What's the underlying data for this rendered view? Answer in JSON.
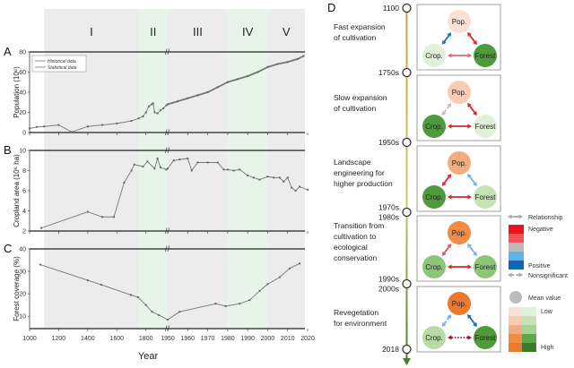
{
  "periods": [
    "I",
    "II",
    "III",
    "IV",
    "V"
  ],
  "period_bounds": [
    1100,
    1750,
    1950,
    1980,
    2000,
    2020
  ],
  "period_colors": [
    "#ececec",
    "#e8f4ea",
    "#ececec",
    "#e8f4ea",
    "#ececec"
  ],
  "xlabel": "Year",
  "x_ticks": [
    1000,
    1200,
    1400,
    1600,
    1800,
    1950,
    1960,
    1970,
    1980,
    1990,
    2000,
    2010,
    2020
  ],
  "x_break": 1950,
  "chart_data": [
    {
      "panel": "A",
      "type": "line",
      "ylabel": "Population (10⁶)",
      "ylim": [
        0,
        80
      ],
      "yticks": [
        0,
        20,
        40,
        60,
        80
      ],
      "legend": [
        "Historical data",
        "Statistical data"
      ],
      "legend_placement": "top-left",
      "series": [
        {
          "name": "Historical data",
          "x": [
            1000,
            1050,
            1100,
            1200,
            1290,
            1400,
            1500,
            1600,
            1700,
            1750,
            1780,
            1800,
            1820,
            1840,
            1850,
            1860,
            1880,
            1900,
            1920,
            1940,
            1950
          ],
          "y": [
            4,
            5.5,
            6,
            7.5,
            0.5,
            6,
            7.5,
            9,
            11.5,
            14,
            16,
            20,
            26,
            28,
            29,
            20,
            19,
            22,
            24,
            27,
            28
          ]
        },
        {
          "name": "Statistical data",
          "x": [
            1950,
            1955,
            1960,
            1965,
            1970,
            1975,
            1980,
            1985,
            1990,
            1995,
            2000,
            2005,
            2010,
            2015,
            2018
          ],
          "y": [
            28,
            31,
            34,
            37,
            40,
            45,
            50,
            53,
            56,
            60,
            65,
            68,
            70,
            73,
            76
          ]
        }
      ]
    },
    {
      "panel": "B",
      "type": "line",
      "ylabel": "Cropland area (10⁶ ha)",
      "ylim": [
        2,
        10
      ],
      "yticks": [
        2,
        4,
        6,
        8,
        10
      ],
      "series": [
        {
          "x": [
            1080,
            1400,
            1500,
            1580,
            1650,
            1700,
            1720,
            1780,
            1810,
            1860,
            1880,
            1900,
            1940,
            1950,
            1953,
            1956,
            1960,
            1962,
            1965,
            1970,
            1975,
            1978,
            1980,
            1983,
            1986,
            1990,
            1993,
            1996,
            2000,
            2003,
            2006,
            2008,
            2010,
            2012,
            2014,
            2016,
            2020
          ],
          "y": [
            2.3,
            3.9,
            3.4,
            3.4,
            6.8,
            8.0,
            8.6,
            8.4,
            8.9,
            8.2,
            9.2,
            8.3,
            8.1,
            8.2,
            9.0,
            9.1,
            9.2,
            8.0,
            8.8,
            8.8,
            8.8,
            8.1,
            8.1,
            8.0,
            8.1,
            7.5,
            7.3,
            7.1,
            7.4,
            7.3,
            7.3,
            6.9,
            7.3,
            6.3,
            6.0,
            6.4,
            6.1
          ]
        }
      ]
    },
    {
      "panel": "C",
      "type": "line",
      "ylabel": "Forest coverage (%)",
      "ylim": [
        4.5,
        40
      ],
      "yticks": [
        10,
        20,
        30,
        40
      ],
      "series": [
        {
          "x": [
            1074,
            1400,
            1494,
            1697,
            1746,
            1800,
            1842,
            1890,
            1950,
            1956,
            1974,
            1979,
            1986,
            1991,
            1996,
            2000,
            2006,
            2011,
            2016
          ],
          "y": [
            33,
            26,
            24,
            19.5,
            18.5,
            15,
            12,
            10.5,
            8.5,
            12,
            15.6,
            14.5,
            15.6,
            17.2,
            21.3,
            24.3,
            27.4,
            31.3,
            33.5
          ]
        }
      ]
    }
  ],
  "diagram": {
    "letter": "D",
    "timeline": [
      "1100",
      "1750s",
      "1950s",
      "1970s\n1980s",
      "1990s\n2000s",
      "2018"
    ],
    "node_labels": {
      "pop": "Pop.",
      "crop": "Crop.",
      "forest": "Forest"
    },
    "stages": [
      {
        "desc": [
          "Fast expansion",
          "of cultivation"
        ],
        "pop": "#fbe1d5",
        "crop": "#e1f0d9",
        "forest": "#4f9a3b",
        "links": {
          "pop_crop": [
            "#1a6fb5",
            "solid"
          ],
          "pop_forest": [
            "#d8242a",
            "solid"
          ],
          "crop_forest": [
            "#ea6a72",
            "solid"
          ]
        }
      },
      {
        "desc": [
          "Slow expansion",
          "of cultivation"
        ],
        "pop": "#f8cdb3",
        "crop": "#4f9a3b",
        "forest": "#e1f0d9",
        "links": {
          "pop_crop": [
            "#bbbbbb",
            "dashed"
          ],
          "pop_forest": [
            "#d8242a",
            "solid"
          ],
          "crop_forest": [
            "#d8242a",
            "solid"
          ]
        }
      },
      {
        "desc": [
          "Landscape",
          "engineering for",
          "higher production"
        ],
        "pop": "#f4ab80",
        "crop": "#4f9a3b",
        "forest": "#c6e3b6",
        "links": {
          "pop_crop": [
            "#d8242a",
            "solid"
          ],
          "pop_forest": [
            "#6cb4e4",
            "solid"
          ],
          "crop_forest": [
            "#d8242a",
            "solid"
          ]
        }
      },
      {
        "desc": [
          "Transition from",
          "cultivation to",
          "ecological",
          "conservation"
        ],
        "pop": "#ee8c48",
        "crop": "#8dc67b",
        "forest": "#8dc67b",
        "links": {
          "pop_crop": [
            "#e0525a",
            "solid"
          ],
          "pop_forest": [
            "#6cb4e4",
            "solid"
          ],
          "crop_forest": [
            "#d8242a",
            "solid"
          ]
        }
      },
      {
        "desc": [
          "Revegetation",
          "for environment"
        ],
        "pop": "#ec7a2e",
        "crop": "#b6dba4",
        "forest": "#4f9a3b",
        "links": {
          "pop_crop": [
            "#5fb3ec",
            "dashed"
          ],
          "pop_forest": [
            "#1565b5",
            "solid"
          ],
          "crop_forest": [
            "#a3151c",
            "dotted"
          ]
        }
      }
    ],
    "legend": {
      "relationship": "Relationship",
      "negative": "Negative",
      "positive": "Positive",
      "nonsignificant": "Nonsignificant",
      "mean_value": "Mean value",
      "low": "Low",
      "high": "High",
      "relationship_colors": [
        "#e8141c",
        "#f0545a",
        "#bbbbbb",
        "#5fb3ec",
        "#1565b5"
      ],
      "pop_scale": [
        "#fbe1d5",
        "#f8cdb3",
        "#f4ab80",
        "#ee8c48",
        "#ec7a2e"
      ],
      "green_scale": [
        "#e1f0d9",
        "#c6e3b6",
        "#a6d592",
        "#5fa84a",
        "#3b7a2b"
      ]
    }
  }
}
